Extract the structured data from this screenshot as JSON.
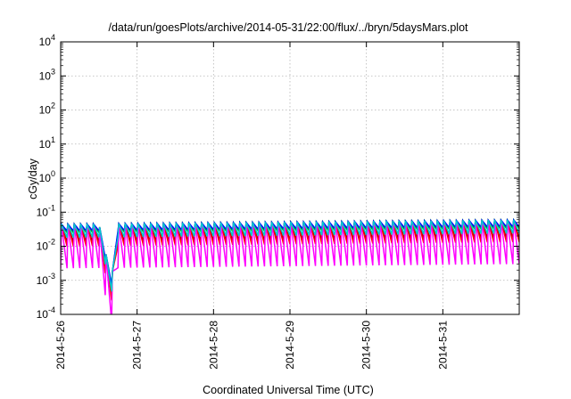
{
  "chart_data": {
    "type": "line",
    "title": "/data/run/goesPlots/archive/2014-05-31/22:00/flux/../bryn/5daysMars.plot",
    "xlabel": "Coordinated Universal Time (UTC)",
    "ylabel": "cGy/day",
    "yscale": "log",
    "ylim": [
      0.0001,
      10000
    ],
    "xlim": [
      "2014-05-26 00:00",
      "2014-06-01 00:00"
    ],
    "grid": true,
    "legend": "none",
    "x_ticks": [
      "2014-5-26",
      "2014-5-27",
      "2014-5-28",
      "2014-5-29",
      "2014-5-30",
      "2014-5-31"
    ],
    "y_ticks": [
      {
        "base": "10",
        "exp": "-4"
      },
      {
        "base": "10",
        "exp": "-3"
      },
      {
        "base": "10",
        "exp": "-2"
      },
      {
        "base": "10",
        "exp": "-1"
      },
      {
        "base": "10",
        "exp": "0"
      },
      {
        "base": "10",
        "exp": "1"
      },
      {
        "base": "10",
        "exp": "2"
      },
      {
        "base": "10",
        "exp": "3"
      },
      {
        "base": "10",
        "exp": "4"
      }
    ],
    "pattern": {
      "cycles_per_day": 12,
      "peak_day_1": 0.045,
      "peak_day_6": 0.06,
      "dip_start": "2014-05-26 12:00",
      "dip_min": "2014-05-26 16:00",
      "dip_end": "2014-05-26 18:00"
    },
    "series": [
      {
        "color": "#8b0000",
        "trough_ratio": 0.28
      },
      {
        "color": "#ff0000",
        "trough_ratio": 0.22
      },
      {
        "color": "#00cc00",
        "trough_ratio": 0.55
      },
      {
        "color": "#0000ff",
        "trough_ratio": 0.62
      },
      {
        "color": "#ff00ff",
        "trough_ratio": 0.05
      },
      {
        "color": "#00cccc",
        "trough_ratio": 0.4
      }
    ]
  }
}
